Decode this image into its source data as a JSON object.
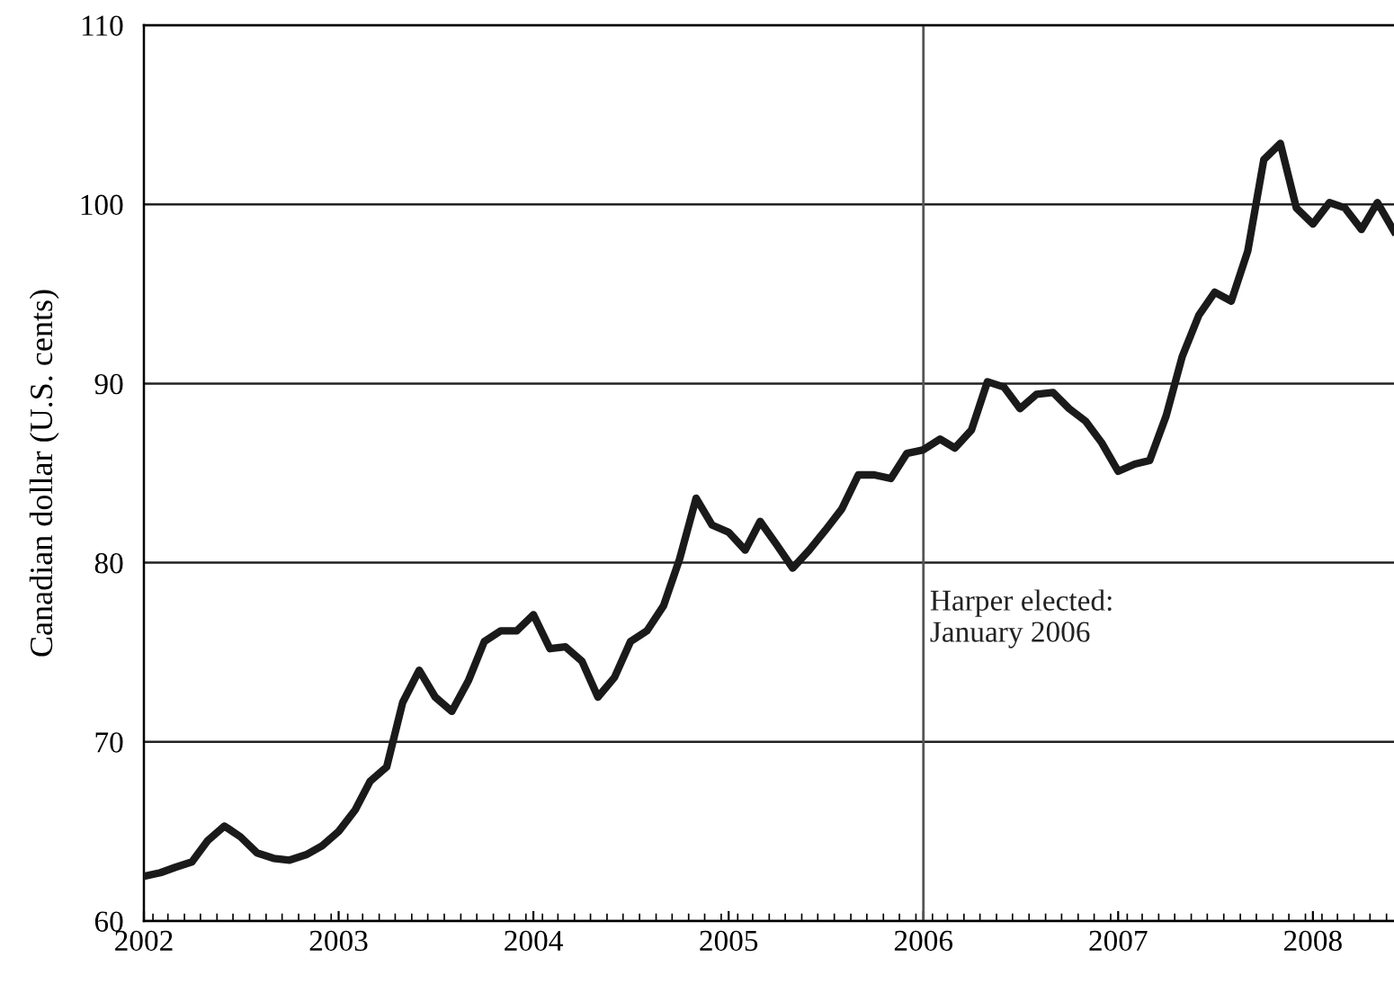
{
  "chart_data": {
    "type": "line",
    "ylabel": "Canadian dollar (U.S. cents)",
    "x": [
      "2002-01",
      "2002-02",
      "2002-03",
      "2002-04",
      "2002-05",
      "2002-06",
      "2002-07",
      "2002-08",
      "2002-09",
      "2002-10",
      "2002-11",
      "2002-12",
      "2003-01",
      "2003-02",
      "2003-03",
      "2003-04",
      "2003-05",
      "2003-06",
      "2003-07",
      "2003-08",
      "2003-09",
      "2003-10",
      "2003-11",
      "2003-12",
      "2004-01",
      "2004-02",
      "2004-03",
      "2004-04",
      "2004-05",
      "2004-06",
      "2004-07",
      "2004-08",
      "2004-09",
      "2004-10",
      "2004-11",
      "2004-12",
      "2005-01",
      "2005-02",
      "2005-03",
      "2005-04",
      "2005-05",
      "2005-06",
      "2005-07",
      "2005-08",
      "2005-09",
      "2005-10",
      "2005-11",
      "2005-12",
      "2006-01",
      "2006-02",
      "2006-03",
      "2006-04",
      "2006-05",
      "2006-06",
      "2006-07",
      "2006-08",
      "2006-09",
      "2006-10",
      "2006-11",
      "2006-12",
      "2007-01",
      "2007-02",
      "2007-03",
      "2007-04",
      "2007-05",
      "2007-06",
      "2007-07",
      "2007-08",
      "2007-09",
      "2007-10",
      "2007-11",
      "2007-12",
      "2008-01",
      "2008-02",
      "2008-03",
      "2008-04",
      "2008-05",
      "2008-06"
    ],
    "series": [
      {
        "color": "#1a1a1a",
        "values": [
          62.5,
          62.7,
          63.0,
          63.3,
          64.5,
          65.3,
          64.7,
          63.8,
          63.5,
          63.4,
          63.7,
          64.2,
          65.0,
          66.2,
          67.8,
          68.6,
          72.2,
          74.0,
          72.5,
          71.7,
          73.4,
          75.6,
          76.2,
          76.2,
          77.1,
          75.2,
          75.3,
          74.5,
          72.5,
          73.6,
          75.6,
          76.2,
          77.6,
          80.2,
          83.6,
          82.1,
          81.7,
          80.7,
          82.3,
          81.0,
          79.7,
          80.7,
          81.8,
          83.0,
          84.9,
          84.9,
          84.7,
          86.1,
          86.3,
          86.9,
          86.4,
          87.4,
          90.1,
          89.8,
          88.6,
          89.4,
          89.5,
          88.6,
          87.9,
          86.7,
          85.1,
          85.5,
          85.7,
          88.2,
          91.5,
          93.8,
          95.1,
          94.6,
          97.4,
          102.5,
          103.4,
          99.8,
          98.9,
          100.1,
          99.8,
          98.6,
          100.1,
          98.5
        ]
      }
    ],
    "xlim": [
      "2002-01",
      "2008-06"
    ],
    "xticks": [
      {
        "value": "2002-01",
        "label": "2002"
      },
      {
        "value": "2003-01",
        "label": "2003"
      },
      {
        "value": "2004-01",
        "label": "2004"
      },
      {
        "value": "2005-01",
        "label": "2005"
      },
      {
        "value": "2006-01",
        "label": "2006"
      },
      {
        "value": "2007-01",
        "label": "2007"
      },
      {
        "value": "2008-01",
        "label": "2008"
      }
    ],
    "ylim": [
      60,
      110
    ],
    "yticks": [
      60,
      70,
      80,
      90,
      100,
      110
    ],
    "grid": "y",
    "legend": false,
    "marker": "none",
    "line_style": "solid",
    "ref_lines": [
      {
        "axis": "x",
        "value": "2006-01",
        "label": "Harper elected:\nJanuary 2006",
        "color": "#555555"
      }
    ]
  }
}
